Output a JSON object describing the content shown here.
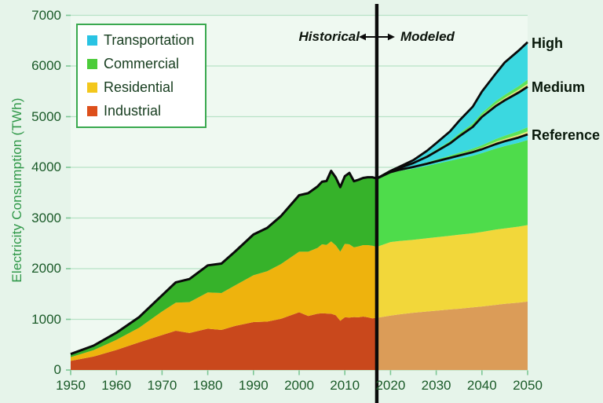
{
  "annotation": {
    "historical": "Historical",
    "modeled": "Modeled"
  },
  "legend": {
    "items": [
      {
        "label": "Transportation",
        "color": "#29c3e3"
      },
      {
        "label": "Commercial",
        "color": "#4ccc3a"
      },
      {
        "label": "Residential",
        "color": "#f3c71c"
      },
      {
        "label": "Industrial",
        "color": "#dd4f1b"
      }
    ]
  },
  "chart_data": {
    "type": "area",
    "title": "",
    "xlabel": "",
    "ylabel": "Electricity Consumption (TWh)",
    "xlim": [
      1950,
      2050
    ],
    "ylim": [
      0,
      7000
    ],
    "x_ticks": [
      1950,
      1960,
      1970,
      1980,
      1990,
      2000,
      2010,
      2020,
      2030,
      2040,
      2050
    ],
    "y_ticks": [
      0,
      1000,
      2000,
      3000,
      4000,
      5000,
      6000,
      7000
    ],
    "grid": true,
    "legend_position": "top-left",
    "divider_year": 2017,
    "historical": {
      "years": [
        1950,
        1955,
        1960,
        1965,
        1970,
        1973,
        1976,
        1980,
        1983,
        1986,
        1990,
        1993,
        1996,
        2000,
        2002,
        2004,
        2005,
        2006,
        2007,
        2008,
        2009,
        2010,
        2011,
        2012,
        2013,
        2014,
        2015,
        2016,
        2017
      ],
      "industrial": [
        180,
        265,
        395,
        545,
        690,
        775,
        730,
        815,
        790,
        870,
        945,
        955,
        1010,
        1140,
        1065,
        1110,
        1120,
        1115,
        1110,
        1080,
        970,
        1040,
        1035,
        1045,
        1040,
        1055,
        1040,
        1020,
        1030
      ],
      "residential": [
        75,
        125,
        200,
        290,
        465,
        555,
        610,
        715,
        730,
        800,
        925,
        995,
        1080,
        1195,
        1270,
        1300,
        1360,
        1355,
        1430,
        1380,
        1365,
        1450,
        1445,
        1375,
        1400,
        1410,
        1425,
        1435,
        1400
      ],
      "commercial": [
        55,
        85,
        135,
        205,
        315,
        395,
        450,
        530,
        575,
        665,
        800,
        850,
        940,
        1110,
        1150,
        1205,
        1230,
        1255,
        1385,
        1335,
        1270,
        1330,
        1405,
        1300,
        1310,
        1320,
        1335,
        1345,
        1345
      ],
      "transportation": [
        5,
        5,
        5,
        5,
        5,
        5,
        5,
        5,
        5,
        5,
        5,
        5,
        5,
        5,
        5,
        5,
        5,
        5,
        5,
        5,
        5,
        5,
        5,
        5,
        5,
        5,
        5,
        5,
        5
      ]
    },
    "modeled": {
      "years": [
        2017,
        2020,
        2022,
        2025,
        2028,
        2030,
        2033,
        2035,
        2038,
        2040,
        2043,
        2045,
        2048,
        2050
      ],
      "reference": {
        "industrial": [
          1030,
          1075,
          1100,
          1130,
          1155,
          1170,
          1195,
          1210,
          1235,
          1255,
          1285,
          1305,
          1330,
          1350
        ],
        "residential": [
          1400,
          1450,
          1445,
          1440,
          1445,
          1450,
          1455,
          1460,
          1465,
          1470,
          1485,
          1490,
          1500,
          1510
        ],
        "commercial": [
          1345,
          1365,
          1385,
          1405,
          1430,
          1450,
          1480,
          1500,
          1530,
          1555,
          1600,
          1625,
          1655,
          1680
        ],
        "transportation": [
          5,
          15,
          22,
          32,
          42,
          48,
          56,
          62,
          70,
          76,
          88,
          95,
          103,
          110
        ]
      },
      "medium_increment": {
        "residential": [
          0,
          2,
          4,
          8,
          12,
          15,
          20,
          25,
          30,
          35,
          45,
          48,
          55,
          60
        ],
        "commercial": [
          0,
          3,
          6,
          10,
          16,
          20,
          26,
          32,
          39,
          45,
          55,
          60,
          72,
          80
        ],
        "transportation": [
          0,
          10,
          25,
          60,
          110,
          160,
          240,
          320,
          430,
          560,
          650,
          700,
          760,
          800
        ]
      },
      "high_increment": {
        "residential": [
          0,
          2,
          4,
          8,
          12,
          15,
          20,
          25,
          30,
          35,
          45,
          48,
          55,
          60
        ],
        "commercial": [
          0,
          3,
          6,
          10,
          16,
          20,
          26,
          32,
          39,
          45,
          55,
          60,
          72,
          80
        ],
        "transportation": [
          0,
          5,
          15,
          40,
          90,
          130,
          190,
          250,
          330,
          420,
          540,
          640,
          700,
          740
        ]
      }
    },
    "scenario_labels": [
      "High",
      "Medium",
      "Reference"
    ],
    "colors": {
      "background": "#e6f4ea",
      "plot_background": "#eff9f1",
      "gridline": "#b7e3c6",
      "tick_mark": "#7cc795",
      "hist_industrial": "#c9481c",
      "hist_residential": "#eeb30d",
      "hist_commercial": "#36b22a",
      "modeled_industrial": "#db9c58",
      "modeled_residential": "#f2d73a",
      "modeled_commercial": "#4edc4b",
      "transportation": "#3bd8e0",
      "increment_residential_strip": "#ece57c",
      "increment_commercial_strip": "#5ee358",
      "line": "#0a0a0a"
    }
  }
}
